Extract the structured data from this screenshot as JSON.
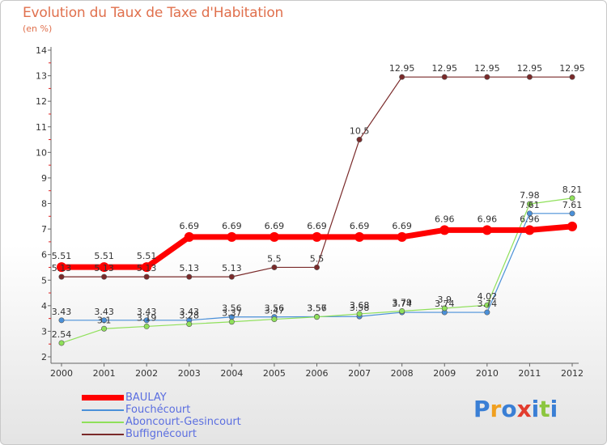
{
  "header": {
    "title": "Evolution du Taux de Taxe d'Habitation",
    "unit": "(en %)"
  },
  "brand": {
    "letters": [
      "P",
      "r",
      "o",
      "x",
      "i",
      "t",
      "i"
    ],
    "colors": [
      "#3a7fd5",
      "#f0a020",
      "#3a7fd5",
      "#e23c2e",
      "#3a7fd5",
      "#8cc63f",
      "#3a7fd5"
    ]
  },
  "chart_data": {
    "type": "line",
    "title": "Evolution du Taux de Taxe d'Habitation",
    "ylabel": "(en %)",
    "x": [
      "2000",
      "2001",
      "2002",
      "2003",
      "2004",
      "2005",
      "2006",
      "2007",
      "2008",
      "2009",
      "2010",
      "2011",
      "2012"
    ],
    "ylim": [
      2,
      14
    ],
    "yticks": [
      "2",
      "3",
      "4",
      "5",
      "6",
      "7",
      "8",
      "9",
      "10",
      "11",
      "12",
      "13",
      "14"
    ],
    "grid": false,
    "legend_position": "bottom-left",
    "series": [
      {
        "name": "BAULAY",
        "color": "#ff0000",
        "values": [
          5.51,
          5.51,
          5.51,
          6.69,
          6.69,
          6.69,
          6.69,
          6.69,
          6.69,
          6.96,
          6.96,
          6.96,
          7.1
        ],
        "labels": [
          "5.51",
          "5.51",
          "5.51",
          "6.69",
          "6.69",
          "6.69",
          "6.69",
          "6.69",
          "6.69",
          "6.96",
          "6.96",
          "6.96",
          ""
        ]
      },
      {
        "name": "Fouchécourt",
        "color": "#4a90d9",
        "values": [
          3.43,
          3.43,
          3.43,
          3.43,
          3.56,
          3.56,
          3.57,
          3.58,
          3.74,
          3.74,
          3.74,
          7.61,
          7.61
        ],
        "labels": [
          "3.43",
          "3.43",
          "3.43",
          "3.43",
          "3.56",
          "3.56",
          "3.57",
          "3.58",
          "3.74",
          "3.74",
          "3.74",
          "7.61",
          "7.61"
        ]
      },
      {
        "name": "Aboncourt-Gesincourt",
        "color": "#8fe05a",
        "values": [
          2.54,
          3.1,
          3.19,
          3.28,
          3.37,
          3.47,
          3.56,
          3.68,
          3.79,
          3.9,
          4.02,
          7.98,
          8.21
        ],
        "labels": [
          "2.54",
          "3.1",
          "3.19",
          "3.28",
          "3.37",
          "3.47",
          "3.56",
          "3.68",
          "3.79",
          "3.9",
          "4.02",
          "7.98",
          "8.21"
        ]
      },
      {
        "name": "Buffignécourt",
        "color": "#7a2a2a",
        "values": [
          5.13,
          5.13,
          5.13,
          5.13,
          5.13,
          5.5,
          5.5,
          10.5,
          12.95,
          12.95,
          12.95,
          12.95,
          12.95
        ],
        "labels": [
          "5.13",
          "5.13",
          "5.13",
          "5.13",
          "5.13",
          "5.5",
          "5.5",
          "10.5",
          "12.95",
          "12.95",
          "12.95",
          "12.95",
          "12.95"
        ]
      }
    ]
  }
}
